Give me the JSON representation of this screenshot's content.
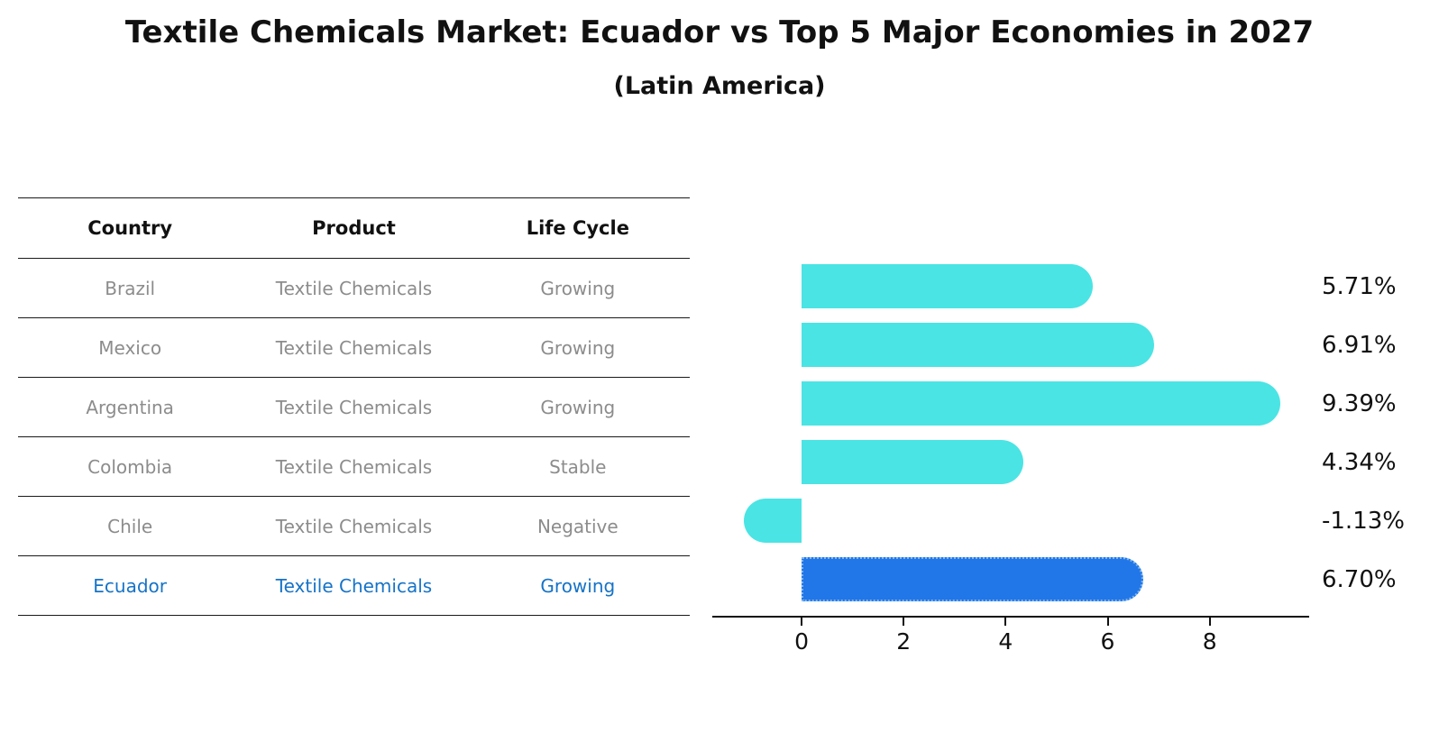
{
  "header": {
    "title": "Textile Chemicals Market: Ecuador vs Top 5 Major Economies in 2027",
    "subtitle": "(Latin America)"
  },
  "table": {
    "headers": [
      "Country",
      "Product",
      "Life Cycle"
    ],
    "rows": [
      {
        "country": "Brazil",
        "product": "Textile Chemicals",
        "life_cycle": "Growing",
        "highlight": false
      },
      {
        "country": "Mexico",
        "product": "Textile Chemicals",
        "life_cycle": "Growing",
        "highlight": false
      },
      {
        "country": "Argentina",
        "product": "Textile Chemicals",
        "life_cycle": "Growing",
        "highlight": false
      },
      {
        "country": "Colombia",
        "product": "Textile Chemicals",
        "life_cycle": "Stable",
        "highlight": false
      },
      {
        "country": "Chile",
        "product": "Textile Chemicals",
        "life_cycle": "Negative",
        "highlight": false
      },
      {
        "country": "Ecuador",
        "product": "Textile Chemicals",
        "life_cycle": "Growing",
        "highlight": true
      }
    ]
  },
  "chart_data": {
    "type": "bar",
    "orientation": "horizontal",
    "categories": [
      "Brazil",
      "Mexico",
      "Argentina",
      "Colombia",
      "Chile",
      "Ecuador"
    ],
    "values": [
      5.71,
      6.91,
      9.39,
      4.34,
      -1.13,
      6.7
    ],
    "value_labels": [
      "5.71%",
      "6.91%",
      "9.39%",
      "4.34%",
      "-1.13%",
      "6.70%"
    ],
    "x_ticks": [
      0,
      2,
      4,
      6,
      8
    ],
    "xlim": [
      -1.75,
      9.95
    ],
    "bar_color": "#4AE4E4",
    "highlight_color": "#2176E8",
    "highlight_index": 5,
    "grid": false,
    "legend": false,
    "title": "",
    "xlabel": "",
    "ylabel": ""
  }
}
